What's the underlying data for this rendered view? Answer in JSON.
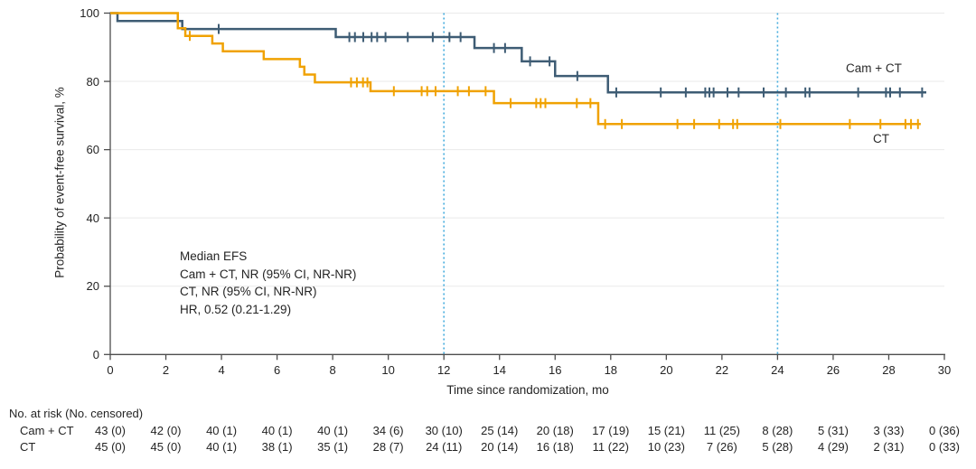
{
  "chart_data": {
    "type": "line",
    "subtype": "kaplan-meier-step",
    "xlabel": "Time since randomization, mo",
    "ylabel": "Probability of event-free survival, %",
    "xlim": [
      0,
      30
    ],
    "ylim": [
      0,
      100
    ],
    "xticks": [
      0,
      2,
      4,
      6,
      8,
      10,
      12,
      14,
      16,
      18,
      20,
      22,
      24,
      26,
      28,
      30
    ],
    "yticks": [
      0,
      20,
      40,
      60,
      80,
      100
    ],
    "grid": "horizontal",
    "reference_lines_x": [
      12,
      24
    ],
    "legend_position": "right-of-curves",
    "series": [
      {
        "name": "Cam + CT",
        "color": "#3E5C74",
        "steps": [
          [
            0,
            100
          ],
          [
            0.26,
            97.67
          ],
          [
            2.59,
            95.35
          ],
          [
            8.11,
            92.97
          ],
          [
            13.1,
            89.77
          ],
          [
            14.8,
            85.87
          ],
          [
            16.0,
            81.57
          ],
          [
            17.9,
            76.77
          ]
        ],
        "end_t": 29.35,
        "censors": [
          [
            3.9,
            95.35
          ],
          [
            8.6,
            92.97
          ],
          [
            8.8,
            92.97
          ],
          [
            9.1,
            92.97
          ],
          [
            9.4,
            92.97
          ],
          [
            9.6,
            92.97
          ],
          [
            9.9,
            92.97
          ],
          [
            10.7,
            92.97
          ],
          [
            11.6,
            92.97
          ],
          [
            12.2,
            92.97
          ],
          [
            12.6,
            92.97
          ],
          [
            13.8,
            89.77
          ],
          [
            14.2,
            89.77
          ],
          [
            15.1,
            85.87
          ],
          [
            15.8,
            85.87
          ],
          [
            16.8,
            81.57
          ],
          [
            18.2,
            76.77
          ],
          [
            19.8,
            76.77
          ],
          [
            20.7,
            76.77
          ],
          [
            21.4,
            76.77
          ],
          [
            21.55,
            76.77
          ],
          [
            21.7,
            76.77
          ],
          [
            22.2,
            76.77
          ],
          [
            22.6,
            76.77
          ],
          [
            23.5,
            76.77
          ],
          [
            24.3,
            76.77
          ],
          [
            25.0,
            76.77
          ],
          [
            25.15,
            76.77
          ],
          [
            26.9,
            76.77
          ],
          [
            27.9,
            76.77
          ],
          [
            28.05,
            76.77
          ],
          [
            28.4,
            76.77
          ],
          [
            29.2,
            76.77
          ]
        ]
      },
      {
        "name": "CT",
        "color": "#F0A202",
        "steps": [
          [
            0,
            100
          ],
          [
            2.43,
            95.56
          ],
          [
            2.7,
            93.33
          ],
          [
            3.67,
            91.11
          ],
          [
            4.05,
            88.83
          ],
          [
            5.52,
            86.55
          ],
          [
            6.82,
            84.27
          ],
          [
            6.98,
            81.99
          ],
          [
            7.36,
            79.71
          ],
          [
            9.36,
            77.14
          ],
          [
            13.8,
            73.63
          ],
          [
            17.55,
            67.5
          ]
        ],
        "end_t": 29.15,
        "censors": [
          [
            2.86,
            93.33
          ],
          [
            8.66,
            79.71
          ],
          [
            8.87,
            79.71
          ],
          [
            9.09,
            79.71
          ],
          [
            9.25,
            79.71
          ],
          [
            10.2,
            77.14
          ],
          [
            11.2,
            77.14
          ],
          [
            11.4,
            77.14
          ],
          [
            11.7,
            77.14
          ],
          [
            12.5,
            77.14
          ],
          [
            12.9,
            77.14
          ],
          [
            13.5,
            77.14
          ],
          [
            14.4,
            73.63
          ],
          [
            15.32,
            73.63
          ],
          [
            15.48,
            73.63
          ],
          [
            15.65,
            73.63
          ],
          [
            16.78,
            73.63
          ],
          [
            17.27,
            73.63
          ],
          [
            17.8,
            67.5
          ],
          [
            18.4,
            67.5
          ],
          [
            20.4,
            67.5
          ],
          [
            21.0,
            67.5
          ],
          [
            21.9,
            67.5
          ],
          [
            22.4,
            67.5
          ],
          [
            22.55,
            67.5
          ],
          [
            24.1,
            67.5
          ],
          [
            26.6,
            67.5
          ],
          [
            27.7,
            67.5
          ],
          [
            28.6,
            67.5
          ],
          [
            28.8,
            67.5
          ],
          [
            29.05,
            67.5
          ]
        ]
      }
    ],
    "annotation": {
      "lines": [
        "Median EFS",
        "Cam + CT, NR (95% CI, NR-NR)",
        "CT, NR (95% CI, NR-NR)",
        "HR, 0.52 (0.21-1.29)"
      ]
    }
  },
  "risk_table": {
    "header": "No. at risk (No. censored)",
    "times": [
      0,
      2,
      4,
      6,
      8,
      10,
      12,
      14,
      16,
      18,
      20,
      22,
      24,
      26,
      28,
      30
    ],
    "rows": [
      {
        "label": "Cam + CT",
        "values": [
          "43 (0)",
          "42 (0)",
          "40 (1)",
          "40 (1)",
          "40 (1)",
          "34 (6)",
          "30 (10)",
          "25 (14)",
          "20 (18)",
          "17 (19)",
          "15 (21)",
          "11 (25)",
          "8 (28)",
          "5 (31)",
          "3 (33)",
          "0 (36)"
        ]
      },
      {
        "label": "CT",
        "values": [
          "45 (0)",
          "45 (0)",
          "40 (1)",
          "38 (1)",
          "35 (1)",
          "28 (7)",
          "24 (11)",
          "20 (14)",
          "16 (18)",
          "11 (22)",
          "10 (23)",
          "7 (26)",
          "5 (28)",
          "4 (29)",
          "2 (31)",
          "0 (33)"
        ]
      }
    ]
  },
  "colors": {
    "camct_line": "#3E5C74",
    "ct_line": "#F0A202",
    "reference_line": "#45ACDE",
    "gridline": "#EAEAEA",
    "axis": "#4D4D4D",
    "text": "#242424"
  }
}
